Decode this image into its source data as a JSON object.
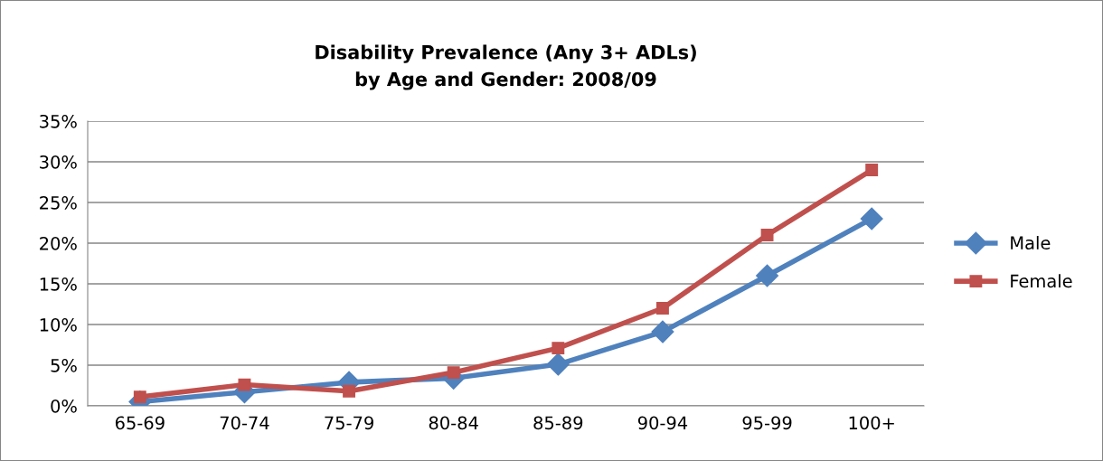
{
  "chart_data": {
    "type": "line",
    "title": "Disability Prevalence (Any 3+ ADLs)\nby Age and Gender: 2008/09",
    "categories": [
      "65-69",
      "70-74",
      "75-79",
      "80-84",
      "85-89",
      "90-94",
      "95-99",
      "100+"
    ],
    "series": [
      {
        "name": "Male",
        "color": "#4f81bd",
        "marker": "diamond",
        "values": [
          0.5,
          1.7,
          2.9,
          3.4,
          5.1,
          9.1,
          16,
          23
        ]
      },
      {
        "name": "Female",
        "color": "#c0504d",
        "marker": "square",
        "values": [
          1.1,
          2.6,
          1.8,
          4.1,
          7.1,
          12,
          21,
          29
        ]
      }
    ],
    "ylim": [
      0,
      35
    ],
    "yticks": [
      {
        "value": 0,
        "label": "0%"
      },
      {
        "value": 5,
        "label": "5%"
      },
      {
        "value": 10,
        "label": "10%"
      },
      {
        "value": 15,
        "label": "15%"
      },
      {
        "value": 20,
        "label": "20%"
      },
      {
        "value": 25,
        "label": "25%"
      },
      {
        "value": 30,
        "label": "30%"
      },
      {
        "value": 35,
        "label": "35%"
      }
    ],
    "grid": "y",
    "legend": "right",
    "line_style": "solid"
  }
}
